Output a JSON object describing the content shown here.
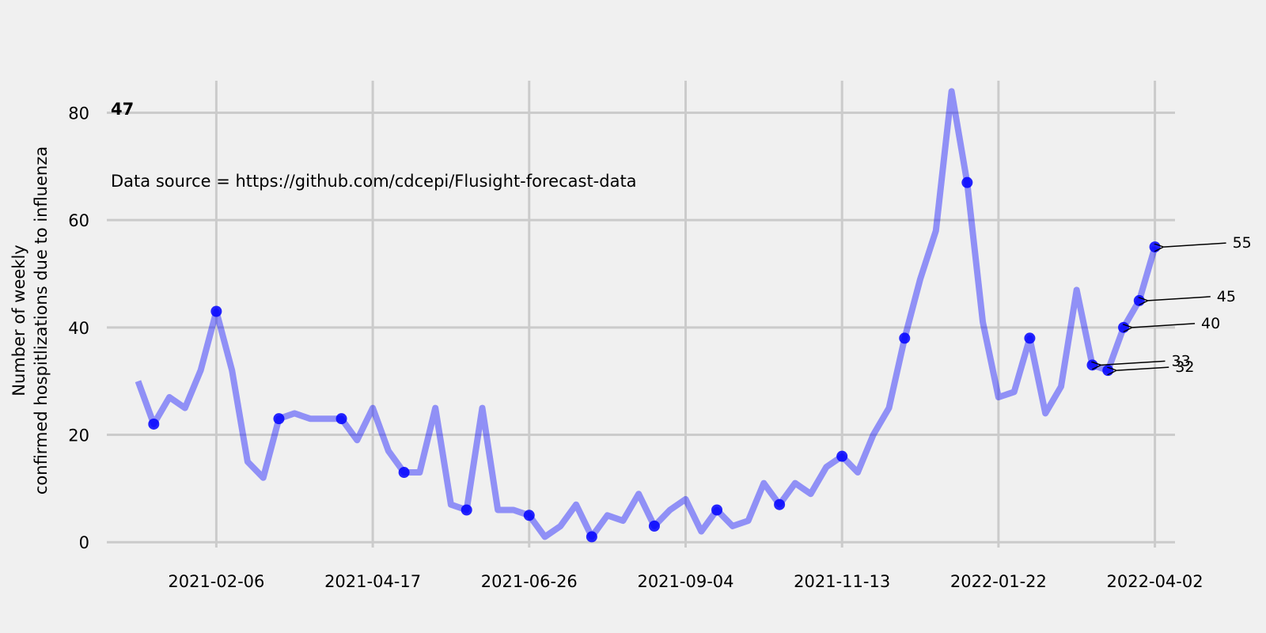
{
  "chart_data": {
    "type": "line",
    "panel_label": "47",
    "source_note": "Data source = https://github.com/cdcepi/Flusight-forecast-data",
    "ylabel_line1": "Number of weekly",
    "ylabel_line2": "confirmed hospitlizations due to influenza",
    "xlabel": "",
    "ylim": [
      -1,
      87
    ],
    "yticks": [
      0,
      20,
      40,
      60,
      80
    ],
    "xlim": [
      "2020-12-19",
      "2022-04-11"
    ],
    "xticks": [
      "2021-02-06",
      "2021-04-17",
      "2021-06-26",
      "2021-09-04",
      "2021-11-13",
      "2022-01-22",
      "2022-04-02"
    ],
    "grid": true,
    "line_color": "#0000ff",
    "marker_color": "#0000ff",
    "background": "#f0f0f0",
    "grid_color": "#cbcbcb",
    "series": [
      {
        "x": [
          "2021-01-02",
          "2021-01-09",
          "2021-01-16",
          "2021-01-23",
          "2021-01-30",
          "2021-02-06",
          "2021-02-13",
          "2021-02-20",
          "2021-02-27",
          "2021-03-06",
          "2021-03-13",
          "2021-03-20",
          "2021-03-27",
          "2021-04-03",
          "2021-04-10",
          "2021-04-17",
          "2021-04-24",
          "2021-05-01",
          "2021-05-08",
          "2021-05-15",
          "2021-05-22",
          "2021-05-29",
          "2021-06-05",
          "2021-06-12",
          "2021-06-19",
          "2021-06-26",
          "2021-07-03",
          "2021-07-10",
          "2021-07-17",
          "2021-07-24",
          "2021-07-31",
          "2021-08-07",
          "2021-08-14",
          "2021-08-21",
          "2021-08-28",
          "2021-09-04",
          "2021-09-11",
          "2021-09-18",
          "2021-09-25",
          "2021-10-02",
          "2021-10-09",
          "2021-10-16",
          "2021-10-23",
          "2021-10-30",
          "2021-11-06",
          "2021-11-13",
          "2021-11-20",
          "2021-11-27",
          "2021-12-04",
          "2021-12-11",
          "2021-12-18",
          "2021-12-25",
          "2022-01-01",
          "2022-01-08",
          "2022-01-15",
          "2022-01-22",
          "2022-01-29",
          "2022-02-05",
          "2022-02-12",
          "2022-02-19",
          "2022-02-26",
          "2022-03-05",
          "2022-03-12",
          "2022-03-19",
          "2022-03-26",
          "2022-04-02"
        ],
        "values": [
          30,
          22,
          27,
          25,
          32,
          43,
          32,
          15,
          12,
          23,
          24,
          23,
          23,
          23,
          19,
          25,
          17,
          13,
          13,
          25,
          7,
          6,
          25,
          6,
          6,
          5,
          1,
          3,
          7,
          1,
          5,
          4,
          9,
          3,
          6,
          8,
          2,
          6,
          3,
          4,
          11,
          7,
          11,
          9,
          14,
          16,
          13,
          20,
          25,
          38,
          49,
          58,
          84,
          67,
          41,
          27,
          28,
          38,
          24,
          29,
          47,
          33,
          32,
          40,
          45,
          55
        ]
      }
    ],
    "markers": {
      "x": [
        "2021-01-09",
        "2021-02-06",
        "2021-03-06",
        "2021-04-03",
        "2021-05-01",
        "2021-05-29",
        "2021-06-26",
        "2021-07-24",
        "2021-08-21",
        "2021-09-18",
        "2021-10-16",
        "2021-11-13",
        "2021-12-11",
        "2022-01-08",
        "2022-02-05",
        "2022-03-05",
        "2022-03-12",
        "2022-03-19",
        "2022-03-26",
        "2022-04-02"
      ],
      "values": [
        22,
        43,
        23,
        23,
        13,
        6,
        5,
        1,
        3,
        6,
        7,
        16,
        38,
        67,
        38,
        33,
        32,
        40,
        45,
        55
      ]
    },
    "annotations": [
      {
        "x": "2022-03-05",
        "y": 33,
        "text": "33"
      },
      {
        "x": "2022-03-12",
        "y": 32,
        "text": "32"
      },
      {
        "x": "2022-03-19",
        "y": 40,
        "text": "40"
      },
      {
        "x": "2022-03-26",
        "y": 45,
        "text": "45"
      },
      {
        "x": "2022-04-02",
        "y": 55,
        "text": "55"
      }
    ]
  }
}
